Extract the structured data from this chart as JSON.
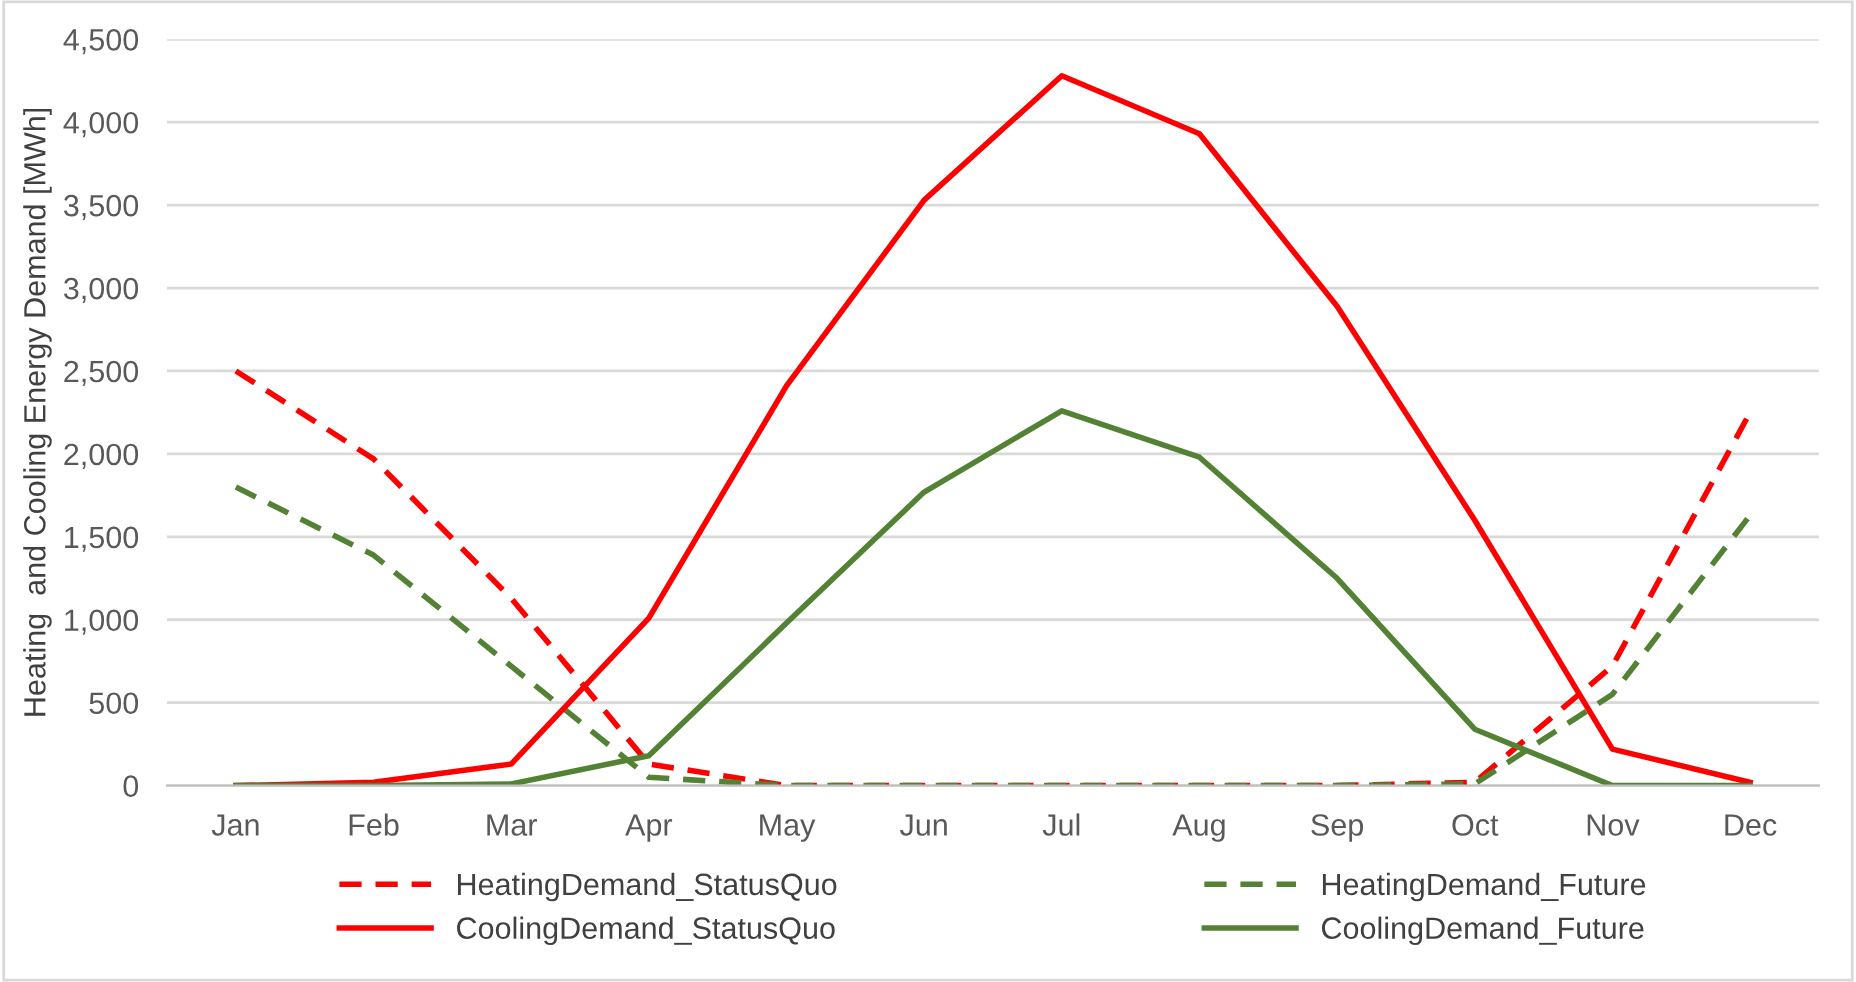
{
  "chart_data": {
    "type": "line",
    "ylabel": "Heating  and Cooling Energy Demand [MWh]",
    "categories": [
      "Jan",
      "Feb",
      "Mar",
      "Apr",
      "May",
      "Jun",
      "Jul",
      "Aug",
      "Sep",
      "Oct",
      "Nov",
      "Dec"
    ],
    "series": [
      {
        "name": "HeatingDemand_StatusQuo",
        "color": "#ff0000",
        "line_style": "dashed",
        "values": [
          2500,
          1970,
          1130,
          130,
          0,
          0,
          0,
          0,
          0,
          20,
          720,
          2250
        ]
      },
      {
        "name": "HeatingDemand_Future",
        "color": "#548235",
        "line_style": "dashed",
        "values": [
          1800,
          1390,
          720,
          50,
          0,
          0,
          0,
          0,
          0,
          10,
          550,
          1630
        ]
      },
      {
        "name": "CoolingDemand_StatusQuo",
        "color": "#ff0000",
        "line_style": "solid",
        "values": [
          0,
          20,
          130,
          1010,
          2410,
          3530,
          4280,
          3930,
          2890,
          1600,
          220,
          20
        ]
      },
      {
        "name": "CoolingDemand_Future",
        "color": "#548235",
        "line_style": "solid",
        "values": [
          0,
          0,
          10,
          180,
          980,
          1770,
          2260,
          1980,
          1250,
          340,
          0,
          0
        ]
      }
    ],
    "ylim": [
      0,
      4500
    ],
    "yticks": [
      0,
      500,
      {
        "value": 1000,
        "label": "1,000"
      },
      {
        "value": 1500,
        "label": "1,500"
      },
      {
        "value": 2000,
        "label": "2,000"
      },
      {
        "value": 2500,
        "label": "2,500"
      },
      {
        "value": 3000,
        "label": "3,000"
      },
      {
        "value": 3500,
        "label": "3,500"
      },
      {
        "value": 4000,
        "label": "4,000"
      },
      {
        "value": 4500,
        "label": "4,500"
      }
    ],
    "grid": "y",
    "legend": "bottom",
    "marker": "none"
  }
}
